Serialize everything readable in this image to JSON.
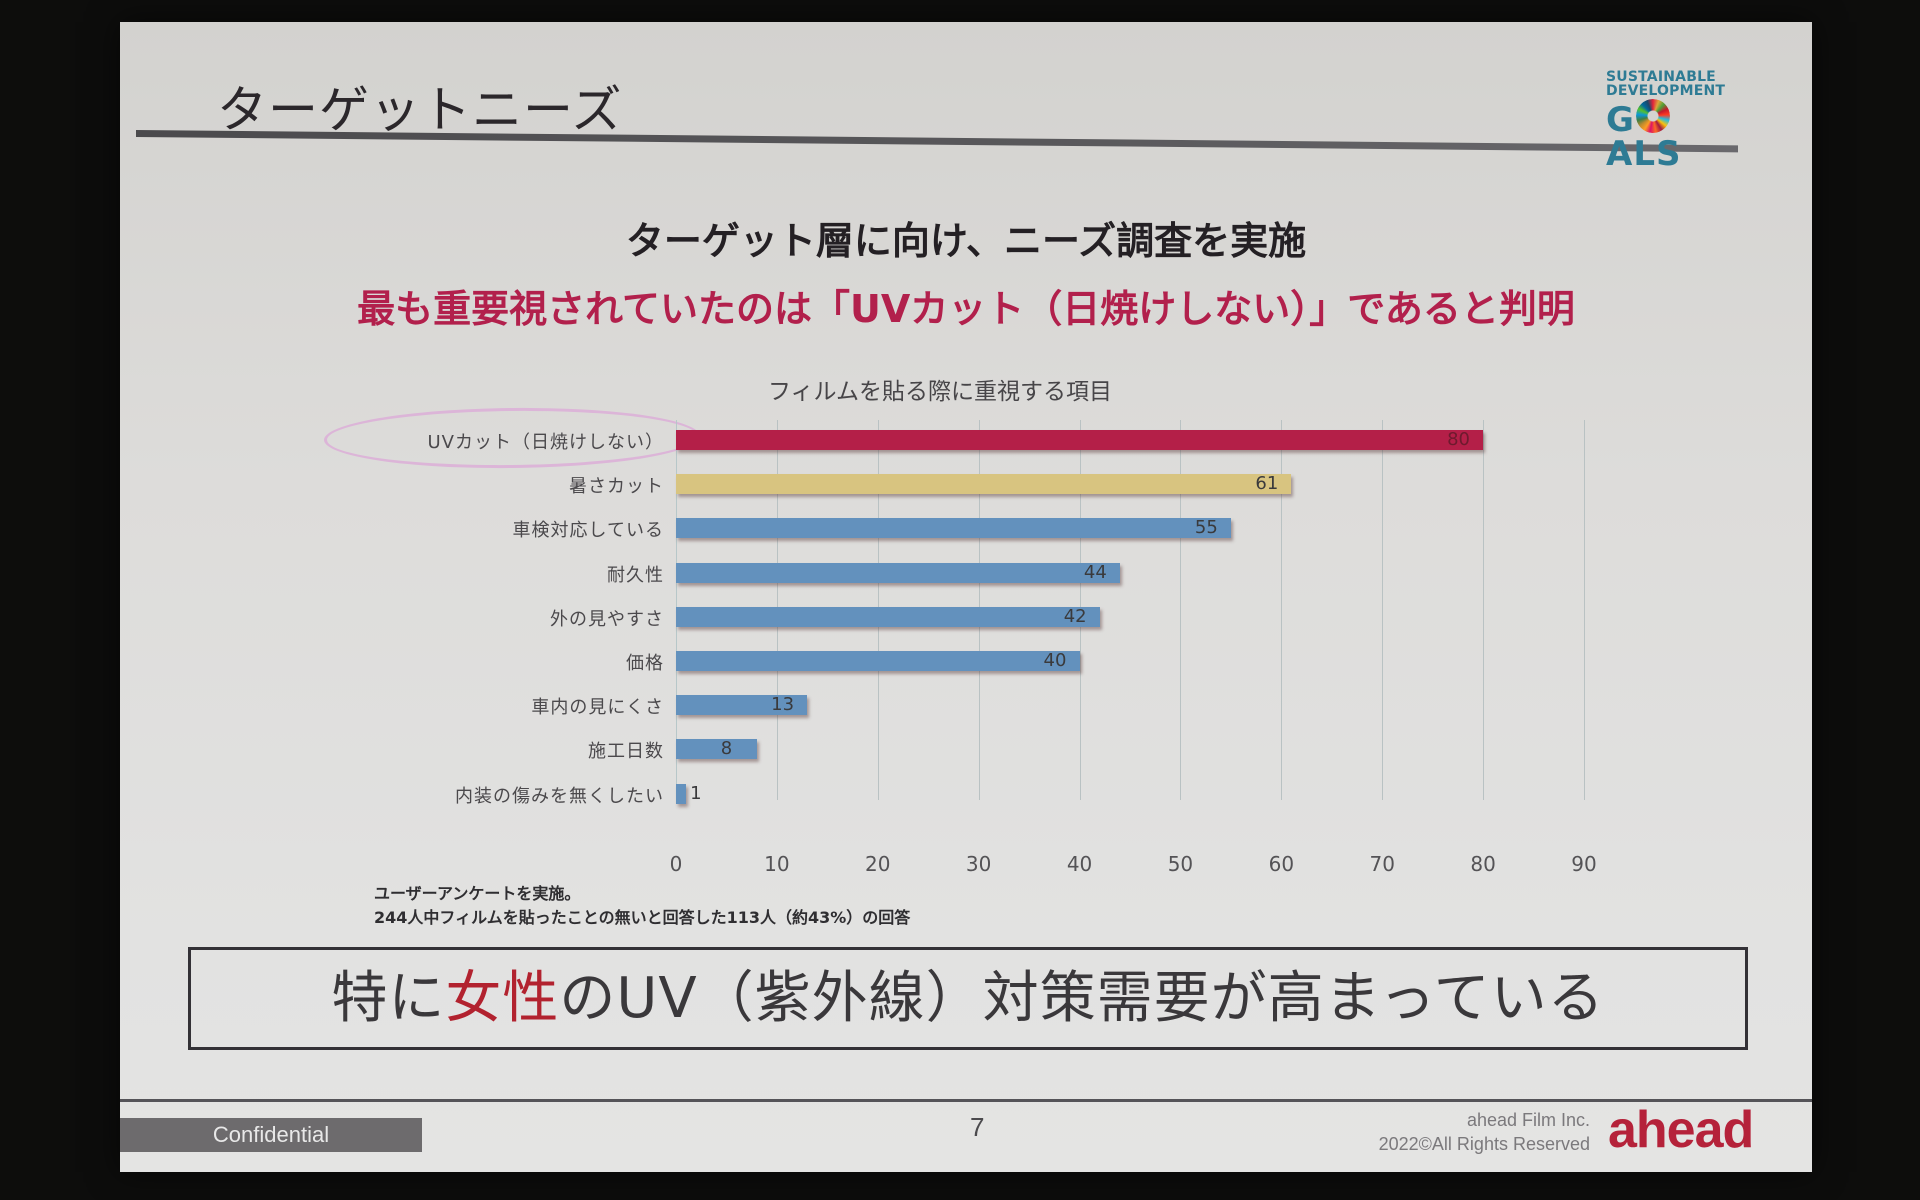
{
  "slide": {
    "title": "ターゲットニーズ",
    "sdg_logo": {
      "line1": "SUSTAINABLE",
      "line2": "DEVELOPMENT",
      "line3_pre": "G",
      "line3_post": "ALS",
      "icon": "sdg-color-wheel-icon"
    },
    "heading1": "ターゲット層に向け、ニーズ調査を実施",
    "heading2": "最も重要視されていたのは「UVカット（日焼けしない）」であると判明",
    "note": {
      "line1": "ユーザーアンケートを実施。",
      "line2": "244人中フィルムを貼ったことの無いと回答した113人（約43%）の回答"
    },
    "conclusion": {
      "pre": "特に",
      "accent": "女性",
      "post": "のUV（紫外線）対策需要が高まっている"
    },
    "footer": {
      "confidential": "Confidential",
      "page_number": "7",
      "company_line1": "ahead Film Inc.",
      "company_line2": "2022©All Rights Reserved",
      "logo": "ahead"
    }
  },
  "colors": {
    "highlight_bar": "#b41f48",
    "second_bar": "#d8c480",
    "default_bar": "#6391bd",
    "heading_accent": "#b2204c",
    "conclusion_accent": "#b2222f",
    "logo": "#b5223a",
    "sdg_text": "#2e7b94",
    "highlight_ellipse": "#dcb5d8"
  },
  "chart_data": {
    "type": "bar",
    "orientation": "horizontal",
    "title": "フィルムを貼る際に重視する項目",
    "categories": [
      "UVカット（日焼けしない）",
      "暑さカット",
      "車検対応している",
      "耐久性",
      "外の見やすさ",
      "価格",
      "車内の見にくさ",
      "施工日数",
      "内装の傷みを無くしたい"
    ],
    "values": [
      80,
      61,
      55,
      44,
      42,
      40,
      13,
      8,
      1
    ],
    "bar_colors": [
      "#b41f48",
      "#d8c480",
      "#6391bd",
      "#6391bd",
      "#6391bd",
      "#6391bd",
      "#6391bd",
      "#6391bd",
      "#6391bd"
    ],
    "xlabel": "",
    "ylabel": "",
    "xlim": [
      0,
      90
    ],
    "x_ticks": [
      0,
      10,
      20,
      30,
      40,
      50,
      60,
      70,
      80,
      90
    ],
    "grid": "vertical",
    "data_labels": true,
    "legend": "none",
    "annotation": "ellipse highlighting UVカット（日焼けしない）"
  }
}
